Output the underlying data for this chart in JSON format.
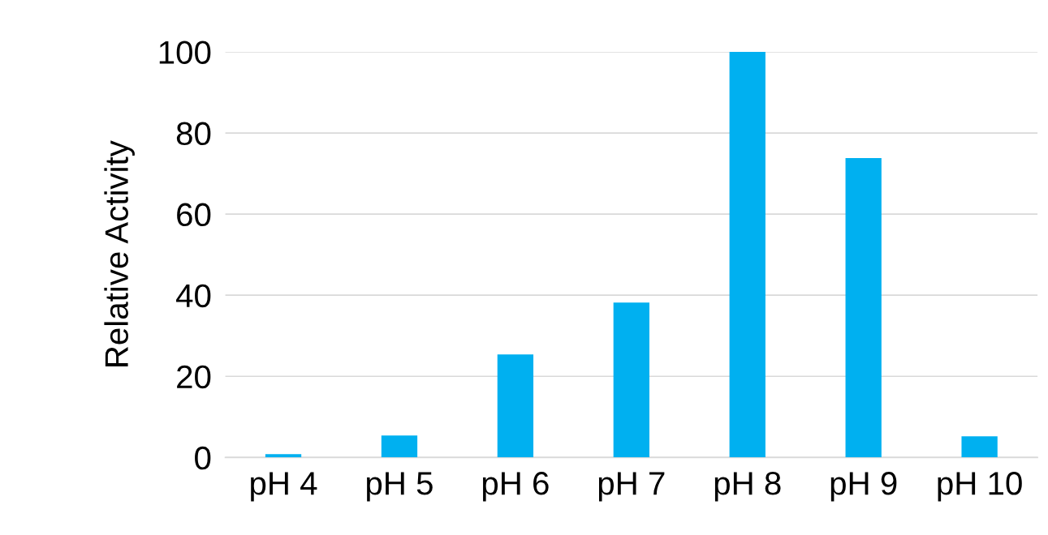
{
  "chart_data": {
    "type": "bar",
    "ylabel": "Relative Activity",
    "categories": [
      "pH 4",
      "pH 5",
      "pH 6",
      "pH 7",
      "pH 8",
      "pH 9",
      "pH 10"
    ],
    "values": [
      0.8,
      5.4,
      25.4,
      38.2,
      100,
      73.8,
      5.2
    ],
    "color": "#00b0f0",
    "ylim": [
      0,
      100
    ],
    "yticks": [
      0,
      20,
      40,
      60,
      80,
      100
    ],
    "grid": "y"
  }
}
